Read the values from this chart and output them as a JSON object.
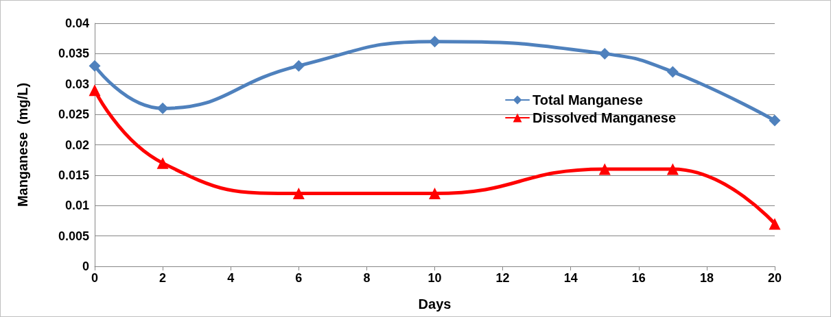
{
  "chart_data": {
    "type": "line",
    "xlabel": "Days",
    "ylabel": "Manganese  (mg/L)",
    "x": [
      0,
      2,
      6,
      10,
      15,
      17,
      20
    ],
    "series": [
      {
        "name": "Total Manganese",
        "color": "#4f81bd",
        "marker": "diamond",
        "values": [
          0.033,
          0.026,
          0.033,
          0.037,
          0.035,
          0.032,
          0.024
        ]
      },
      {
        "name": "Dissolved Manganese",
        "color": "#ff0000",
        "marker": "triangle",
        "values": [
          0.029,
          0.017,
          0.012,
          0.012,
          0.016,
          0.016,
          0.007
        ]
      }
    ],
    "xlim": [
      0,
      20
    ],
    "xticks": [
      0,
      2,
      4,
      6,
      8,
      10,
      12,
      14,
      16,
      18,
      20
    ],
    "ylim": [
      0,
      0.04
    ],
    "yticks": [
      0,
      0.005,
      0.01,
      0.015,
      0.02,
      0.025,
      0.03,
      0.035,
      0.04
    ],
    "grid": "y",
    "legend": "right",
    "line_style": "solid"
  }
}
